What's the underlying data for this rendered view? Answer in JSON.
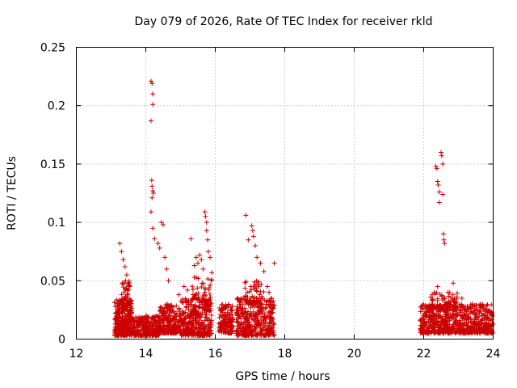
{
  "chart_data": {
    "type": "scatter",
    "title": "Day 079 of 2026, Rate Of TEC Index for receiver rkld",
    "xlabel": "GPS time / hours",
    "ylabel": "ROTI / TECUs",
    "xlim": [
      12,
      24
    ],
    "ylim": [
      0,
      0.25
    ],
    "xticks": [
      "12",
      "14",
      "16",
      "18",
      "20",
      "22",
      "24"
    ],
    "yticks": [
      "0",
      "0.05",
      "0.1",
      "0.15",
      "0.2",
      "0.25"
    ],
    "grid": true,
    "marker": "+",
    "series": [
      {
        "name": "ROTI",
        "color": "#cc0000",
        "peaks": [
          [
            13.25,
            0.082
          ],
          [
            13.3,
            0.075
          ],
          [
            13.35,
            0.068
          ],
          [
            13.4,
            0.062
          ],
          [
            13.45,
            0.055
          ],
          [
            13.5,
            0.048
          ],
          [
            14.15,
            0.221
          ],
          [
            14.18,
            0.219
          ],
          [
            14.2,
            0.21
          ],
          [
            14.2,
            0.201
          ],
          [
            14.15,
            0.187
          ],
          [
            14.17,
            0.136
          ],
          [
            14.18,
            0.131
          ],
          [
            14.2,
            0.127
          ],
          [
            14.22,
            0.125
          ],
          [
            14.18,
            0.121
          ],
          [
            14.15,
            0.109
          ],
          [
            14.2,
            0.095
          ],
          [
            14.25,
            0.086
          ],
          [
            14.35,
            0.082
          ],
          [
            14.4,
            0.078
          ],
          [
            14.45,
            0.1
          ],
          [
            14.5,
            0.098
          ],
          [
            14.55,
            0.07
          ],
          [
            14.6,
            0.06
          ],
          [
            14.65,
            0.05
          ],
          [
            14.95,
            0.038
          ],
          [
            15.1,
            0.045
          ],
          [
            15.2,
            0.042
          ],
          [
            15.3,
            0.086
          ],
          [
            15.4,
            0.063
          ],
          [
            15.45,
            0.07
          ],
          [
            15.5,
            0.065
          ],
          [
            15.55,
            0.072
          ],
          [
            15.6,
            0.068
          ],
          [
            15.65,
            0.06
          ],
          [
            15.7,
            0.109
          ],
          [
            15.72,
            0.105
          ],
          [
            15.75,
            0.1
          ],
          [
            15.75,
            0.093
          ],
          [
            15.78,
            0.085
          ],
          [
            15.8,
            0.075
          ],
          [
            15.85,
            0.07
          ],
          [
            15.9,
            0.057
          ],
          [
            16.88,
            0.106
          ],
          [
            16.95,
            0.085
          ],
          [
            17.05,
            0.097
          ],
          [
            17.08,
            0.093
          ],
          [
            17.1,
            0.088
          ],
          [
            17.15,
            0.08
          ],
          [
            17.2,
            0.07
          ],
          [
            17.3,
            0.065
          ],
          [
            17.4,
            0.058
          ],
          [
            17.5,
            0.045
          ],
          [
            17.55,
            0.04
          ],
          [
            17.7,
            0.065
          ],
          [
            22.35,
            0.148
          ],
          [
            22.38,
            0.146
          ],
          [
            22.4,
            0.135
          ],
          [
            22.42,
            0.132
          ],
          [
            22.45,
            0.126
          ],
          [
            22.45,
            0.117
          ],
          [
            22.5,
            0.16
          ],
          [
            22.52,
            0.157
          ],
          [
            22.55,
            0.15
          ],
          [
            22.55,
            0.124
          ],
          [
            22.57,
            0.09
          ],
          [
            22.58,
            0.085
          ],
          [
            22.6,
            0.082
          ],
          [
            22.3,
            0.04
          ],
          [
            22.4,
            0.045
          ],
          [
            22.7,
            0.04
          ],
          [
            22.85,
            0.048
          ],
          [
            23.1,
            0.035
          ],
          [
            23.4,
            0.03
          ],
          [
            23.7,
            0.028
          ]
        ],
        "bands": [
          {
            "x": [
              13.1,
              13.6
            ],
            "y": [
              0.003,
              0.035
            ],
            "n": 300
          },
          {
            "x": [
              13.25,
              13.55
            ],
            "y": [
              0.03,
              0.05
            ],
            "n": 40
          },
          {
            "x": [
              13.6,
              14.4
            ],
            "y": [
              0.003,
              0.02
            ],
            "n": 260
          },
          {
            "x": [
              14.4,
              15.0
            ],
            "y": [
              0.005,
              0.03
            ],
            "n": 200
          },
          {
            "x": [
              15.0,
              15.9
            ],
            "y": [
              0.003,
              0.035
            ],
            "n": 320
          },
          {
            "x": [
              15.3,
              15.9
            ],
            "y": [
              0.025,
              0.055
            ],
            "n": 60
          },
          {
            "x": [
              16.1,
              16.5
            ],
            "y": [
              0.005,
              0.03
            ],
            "n": 140
          },
          {
            "x": [
              16.6,
              17.7
            ],
            "y": [
              0.003,
              0.035
            ],
            "n": 380
          },
          {
            "x": [
              16.85,
              17.4
            ],
            "y": [
              0.03,
              0.05
            ],
            "n": 50
          },
          {
            "x": [
              21.9,
              24.0
            ],
            "y": [
              0.005,
              0.03
            ],
            "n": 700
          },
          {
            "x": [
              22.2,
              23.0
            ],
            "y": [
              0.025,
              0.04
            ],
            "n": 80
          }
        ]
      }
    ]
  }
}
